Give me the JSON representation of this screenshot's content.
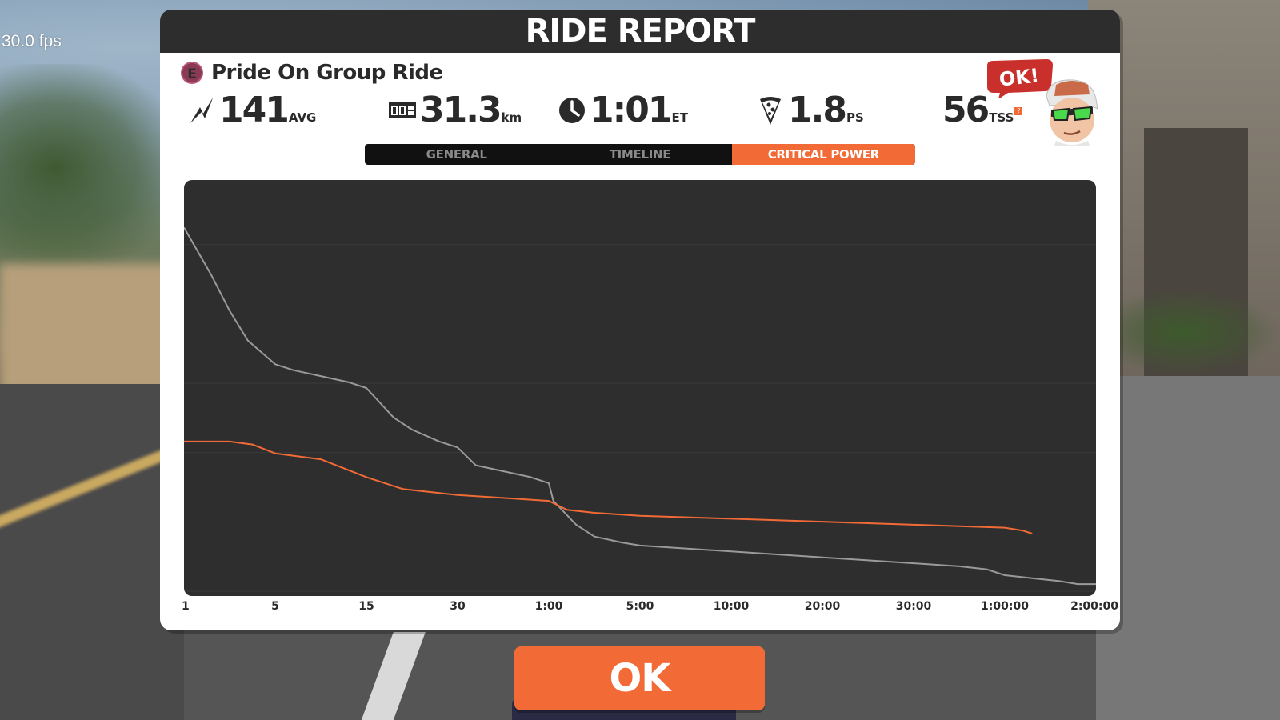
{
  "hud": {
    "fps": "30.0 fps"
  },
  "header": {
    "title": "RIDE REPORT"
  },
  "ride": {
    "category": "E",
    "name": "Pride On Group Ride"
  },
  "stats": {
    "power": {
      "value": "141",
      "unit": "AVG",
      "icon": "lightning-icon"
    },
    "distance": {
      "value": "31.3",
      "unit": "km",
      "icon": "odometer-icon"
    },
    "time": {
      "value": "1:01",
      "unit": "ET",
      "icon": "clock-icon"
    },
    "pizza": {
      "value": "1.8",
      "unit": "PS",
      "icon": "pizza-icon"
    },
    "tss": {
      "value": "56",
      "unit": "TSS",
      "help": "?"
    }
  },
  "badge": {
    "text": "OK!"
  },
  "tabs": [
    {
      "label": "GENERAL",
      "active": false
    },
    {
      "label": "TIMELINE",
      "active": false
    },
    {
      "label": "CRITICAL POWER",
      "active": true
    }
  ],
  "colors": {
    "accent": "#f26b36",
    "grey_line": "#9a9a9a",
    "chart_bg": "#2e2e2e"
  },
  "chart_data": {
    "type": "line",
    "x_ticks": [
      "1",
      "5",
      "15",
      "30",
      "1:00",
      "5:00",
      "10:00",
      "20:00",
      "30:00",
      "1:00:00",
      "2:00:00"
    ],
    "x_scale": "log duration",
    "grid": true,
    "series": [
      {
        "color": "#9a9a9a",
        "points": [
          [
            0,
            9.2
          ],
          [
            0.3,
            8.4
          ],
          [
            0.5,
            7.8
          ],
          [
            0.7,
            7.3
          ],
          [
            1,
            6.9
          ],
          [
            1.2,
            6.8
          ],
          [
            1.5,
            6.7
          ],
          [
            1.8,
            6.6
          ],
          [
            2,
            6.5
          ],
          [
            2.3,
            6.0
          ],
          [
            2.5,
            5.8
          ],
          [
            2.8,
            5.6
          ],
          [
            3,
            5.5
          ],
          [
            3.2,
            5.2
          ],
          [
            3.5,
            5.1
          ],
          [
            3.8,
            5.0
          ],
          [
            4,
            4.9
          ],
          [
            4.05,
            4.6
          ],
          [
            4.3,
            4.2
          ],
          [
            4.5,
            4.0
          ],
          [
            4.8,
            3.9
          ],
          [
            5,
            3.85
          ],
          [
            5.5,
            3.8
          ],
          [
            6,
            3.75
          ],
          [
            6.5,
            3.7
          ],
          [
            7,
            3.65
          ],
          [
            7.5,
            3.6
          ],
          [
            8,
            3.55
          ],
          [
            8.5,
            3.5
          ],
          [
            8.8,
            3.45
          ],
          [
            9,
            3.35
          ],
          [
            9.3,
            3.3
          ],
          [
            9.6,
            3.25
          ],
          [
            9.8,
            3.2
          ],
          [
            10,
            3.2
          ]
        ]
      },
      {
        "color": "#f26b36",
        "points": [
          [
            0,
            5.6
          ],
          [
            0.5,
            5.6
          ],
          [
            0.75,
            5.55
          ],
          [
            1,
            5.4
          ],
          [
            1.5,
            5.3
          ],
          [
            2,
            5.0
          ],
          [
            2.4,
            4.8
          ],
          [
            2.7,
            4.75
          ],
          [
            3,
            4.7
          ],
          [
            3.5,
            4.65
          ],
          [
            4,
            4.6
          ],
          [
            4.2,
            4.45
          ],
          [
            4.5,
            4.4
          ],
          [
            5,
            4.35
          ],
          [
            6,
            4.3
          ],
          [
            7,
            4.25
          ],
          [
            8,
            4.2
          ],
          [
            9,
            4.15
          ],
          [
            9.2,
            4.1
          ],
          [
            9.3,
            4.05
          ]
        ]
      }
    ],
    "ylim": [
      3,
      10
    ]
  },
  "ok_button": {
    "label": "OK"
  }
}
